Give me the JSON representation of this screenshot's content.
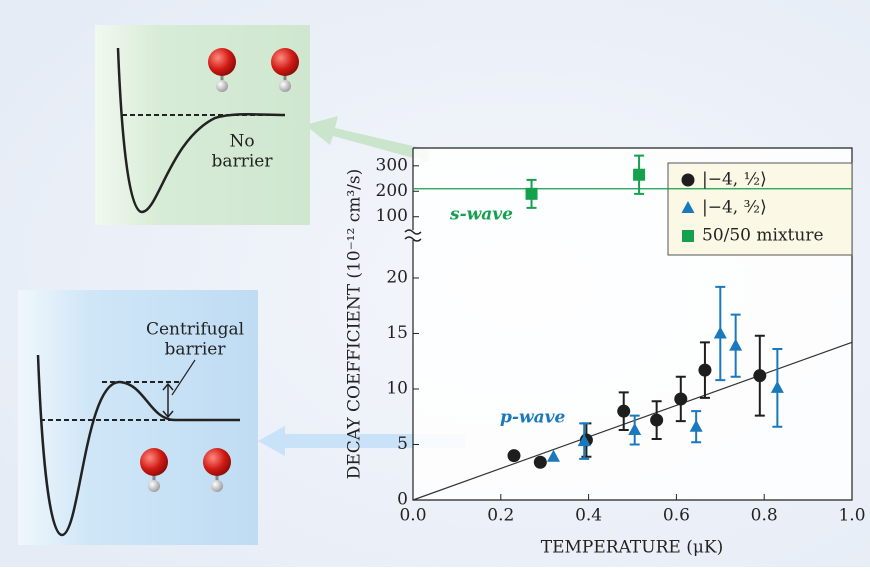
{
  "chart_data": {
    "type": "scatter",
    "x_label": "TEMPERATURE (μK)",
    "y_label": "DECAY COEFFICIENT (10⁻¹² cm³/s)",
    "xlim": [
      0,
      1.0
    ],
    "xticks": [
      {
        "value": 0,
        "label": "0.0"
      },
      0.2,
      0.4,
      0.6,
      0.8,
      {
        "value": 1.0,
        "label": "1.0"
      }
    ],
    "ylim": [
      0,
      23.6
    ],
    "yticks": [
      0,
      5,
      10,
      15,
      20
    ],
    "y2lim": [
      40,
      370
    ],
    "y2ticks": [
      100,
      200,
      300
    ],
    "series": [
      {
        "name": "|−4, ½⟩",
        "color": "#1e1e1e",
        "marker": "circle",
        "x": [
          0.23,
          0.29,
          0.395,
          0.48,
          0.555,
          0.61,
          0.665,
          0.79
        ],
        "values": [
          4.0,
          3.4,
          5.4,
          8.0,
          7.2,
          9.1,
          11.7,
          11.2
        ],
        "errors": [
          null,
          null,
          1.5,
          1.7,
          1.7,
          2.0,
          2.5,
          3.6
        ]
      },
      {
        "name": "|−4, ³⁄₂⟩",
        "color": "#1a78bd",
        "marker": "triangle",
        "x": [
          0.32,
          0.39,
          0.505,
          0.645,
          0.7,
          0.735,
          0.83
        ],
        "values": [
          3.9,
          5.3,
          6.3,
          6.6,
          15.0,
          13.9,
          10.1
        ],
        "errors": [
          null,
          1.6,
          1.3,
          1.4,
          4.2,
          2.8,
          3.5
        ]
      },
      {
        "name": "50/50 mixture",
        "color": "#15a04e",
        "marker": "square",
        "axis": "y2",
        "x": [
          0.27,
          0.515
        ],
        "values": [
          190,
          265
        ],
        "errors": [
          55,
          75
        ]
      }
    ],
    "fit": {
      "color": "#333333",
      "x": [
        0,
        1.0
      ],
      "values": [
        0,
        14.2
      ]
    },
    "fit_y2": {
      "color": "#15a04e",
      "x": [
        0,
        1.0
      ],
      "values": [
        210,
        210
      ]
    },
    "annotations": {
      "s_wave": "s-wave",
      "p_wave": "p-wave",
      "no_barrier": [
        "No",
        "barrier"
      ],
      "centrifugal_barrier": [
        "Centrifugal",
        "barrier"
      ]
    }
  }
}
